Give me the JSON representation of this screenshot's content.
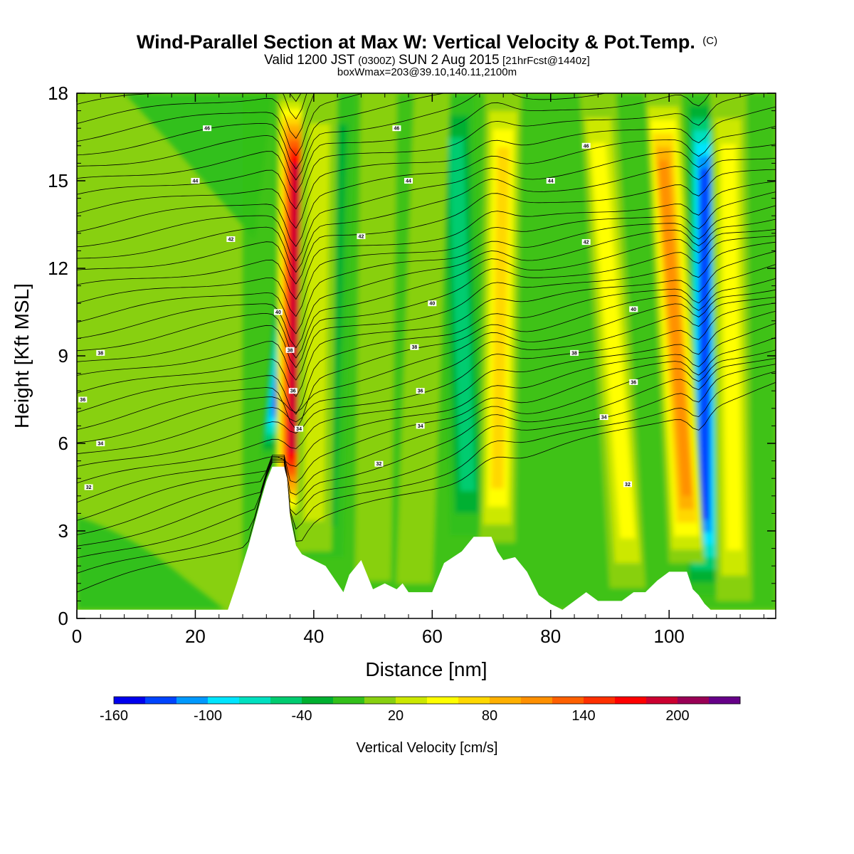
{
  "title": {
    "main": "Wind-Parallel Section at Max W: Vertical Velocity & Pot.Temp.",
    "main_suffix": "(C)",
    "valid_prefix": "Valid 1200 JST",
    "valid_utc": "(0300Z)",
    "valid_date": "SUN 2 Aug 2015",
    "valid_fcst": "[21hrFcst@1440z]",
    "box": "boxWmax=203@39.10,140.11,2100m"
  },
  "chart_data": {
    "type": "heatmap",
    "title": "Wind-Parallel Section at Max W: Vertical Velocity & Pot.Temp.",
    "xlabel": "Distance [nm]",
    "ylabel": "Height [Kft MSL]",
    "xlim": [
      0,
      118
    ],
    "ylim": [
      0,
      18
    ],
    "x_ticks": [
      0,
      20,
      40,
      60,
      80,
      100
    ],
    "y_ticks": [
      0,
      3,
      6,
      9,
      12,
      15,
      18
    ],
    "colorbar": {
      "title": "Vertical Velocity [cm/s]",
      "levels": [
        -160,
        -140,
        -120,
        -100,
        -80,
        -60,
        -40,
        -20,
        0,
        20,
        40,
        60,
        80,
        100,
        120,
        140,
        160,
        180,
        200,
        220,
        240
      ],
      "labels": [
        "-160",
        "-100",
        "-40",
        "20",
        "80",
        "140",
        "200"
      ],
      "colors": [
        "#0000ee",
        "#0044ff",
        "#0099ff",
        "#00e5ff",
        "#00e0c0",
        "#00cc70",
        "#00b030",
        "#33c01a",
        "#88d010",
        "#cce800",
        "#ffff00",
        "#ffd800",
        "#ffb000",
        "#ff9000",
        "#ff6000",
        "#ff3000",
        "#ff0000",
        "#cc0030",
        "#990055",
        "#660088"
      ]
    },
    "updraft_bands": [
      {
        "x_top": 37,
        "x_bottom": 36.5,
        "peak": 203
      },
      {
        "x_top": 41,
        "x_bottom": 40,
        "peak": 40
      },
      {
        "x_top": 51,
        "x_bottom": 50,
        "peak": 30
      },
      {
        "x_top": 60,
        "x_bottom": 57,
        "peak": 30
      },
      {
        "x_top": 72,
        "x_bottom": 71,
        "peak": 90
      },
      {
        "x_top": 88,
        "x_bottom": 93,
        "peak": 60
      },
      {
        "x_top": 99,
        "x_bottom": 103,
        "peak": 130
      },
      {
        "x_top": 110,
        "x_bottom": 111,
        "peak": 60
      }
    ],
    "downdraft_bands": [
      {
        "x_top": 39,
        "x_bottom": 34,
        "peak": -160
      },
      {
        "x_top": 106,
        "x_bottom": 106,
        "peak": -150
      },
      {
        "x_top": 44,
        "x_bottom": 42,
        "peak": -40
      },
      {
        "x_top": 64,
        "x_bottom": 66,
        "peak": -60
      }
    ],
    "terrain": [
      [
        0,
        0.3
      ],
      [
        25.5,
        0.3
      ],
      [
        26,
        0.6
      ],
      [
        27,
        1.2
      ],
      [
        29,
        2.5
      ],
      [
        31,
        4.0
      ],
      [
        32,
        4.7
      ],
      [
        33,
        5.2
      ],
      [
        35,
        5.2
      ],
      [
        35.5,
        4.8
      ],
      [
        36,
        3.5
      ],
      [
        37,
        2.5
      ],
      [
        38,
        2.2
      ],
      [
        40,
        2.0
      ],
      [
        42,
        1.8
      ],
      [
        44,
        1.2
      ],
      [
        45,
        0.9
      ],
      [
        46,
        1.5
      ],
      [
        48,
        2.0
      ],
      [
        49,
        1.5
      ],
      [
        50,
        1.0
      ],
      [
        52,
        1.2
      ],
      [
        54,
        1.0
      ],
      [
        55,
        1.2
      ],
      [
        56,
        0.9
      ],
      [
        58,
        0.9
      ],
      [
        60,
        0.9
      ],
      [
        61,
        1.4
      ],
      [
        62,
        1.9
      ],
      [
        65,
        2.3
      ],
      [
        67,
        2.8
      ],
      [
        70,
        2.8
      ],
      [
        71,
        2.3
      ],
      [
        72,
        2.0
      ],
      [
        74,
        2.1
      ],
      [
        76,
        1.6
      ],
      [
        78,
        0.8
      ],
      [
        80,
        0.5
      ],
      [
        82,
        0.3
      ],
      [
        84,
        0.6
      ],
      [
        86,
        0.9
      ],
      [
        88,
        0.6
      ],
      [
        90,
        0.6
      ],
      [
        92,
        0.6
      ],
      [
        94,
        0.9
      ],
      [
        96,
        0.9
      ],
      [
        98,
        1.3
      ],
      [
        100,
        1.6
      ],
      [
        103,
        1.6
      ],
      [
        104,
        1.0
      ],
      [
        105,
        0.8
      ],
      [
        106,
        0.5
      ],
      [
        107,
        0.3
      ],
      [
        118,
        0.3
      ]
    ],
    "theta_contour_labels": [
      {
        "x": 2,
        "y": 4.5,
        "value": "32"
      },
      {
        "x": 4,
        "y": 6.0,
        "value": "34"
      },
      {
        "x": 1,
        "y": 7.5,
        "value": "36"
      },
      {
        "x": 4,
        "y": 9.1,
        "value": "38"
      },
      {
        "x": 34,
        "y": 10.5,
        "value": "40"
      },
      {
        "x": 26,
        "y": 13.0,
        "value": "42"
      },
      {
        "x": 20,
        "y": 15.0,
        "value": "44"
      },
      {
        "x": 22,
        "y": 16.8,
        "value": "46"
      },
      {
        "x": 36,
        "y": 9.2,
        "value": "38"
      },
      {
        "x": 36.5,
        "y": 7.8,
        "value": "36"
      },
      {
        "x": 37.5,
        "y": 6.5,
        "value": "34"
      },
      {
        "x": 48,
        "y": 13.1,
        "value": "42"
      },
      {
        "x": 54,
        "y": 16.8,
        "value": "46"
      },
      {
        "x": 56,
        "y": 15.0,
        "value": "44"
      },
      {
        "x": 60,
        "y": 10.8,
        "value": "40"
      },
      {
        "x": 57,
        "y": 9.3,
        "value": "38"
      },
      {
        "x": 58,
        "y": 7.8,
        "value": "36"
      },
      {
        "x": 58,
        "y": 6.6,
        "value": "34"
      },
      {
        "x": 51,
        "y": 5.3,
        "value": "32"
      },
      {
        "x": 80,
        "y": 15.0,
        "value": "44"
      },
      {
        "x": 86,
        "y": 16.2,
        "value": "46"
      },
      {
        "x": 86,
        "y": 12.9,
        "value": "42"
      },
      {
        "x": 94,
        "y": 10.6,
        "value": "40"
      },
      {
        "x": 84,
        "y": 9.1,
        "value": "38"
      },
      {
        "x": 94,
        "y": 8.1,
        "value": "36"
      },
      {
        "x": 89,
        "y": 6.9,
        "value": "34"
      },
      {
        "x": 93,
        "y": 4.6,
        "value": "32"
      }
    ]
  }
}
